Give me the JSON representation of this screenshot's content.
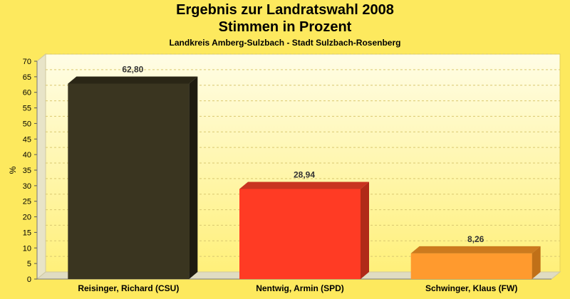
{
  "chart_data": {
    "type": "bar",
    "title": "Ergebnis zur Landratswahl 2008",
    "title2": "Stimmen in Prozent",
    "subtitle": "Landkreis Amberg-Sulzbach - Stadt Sulzbach-Rosenberg",
    "ylabel": "%",
    "xlabel": "",
    "ylim": [
      0,
      70
    ],
    "ytick_step": 5,
    "grid": true,
    "legend": "none",
    "categories": [
      "Reisinger, Richard (CSU)",
      "Nentwig, Armin (SPD)",
      "Schwinger, Klaus (FW)"
    ],
    "values": [
      62.8,
      28.94,
      8.26
    ],
    "value_labels": [
      "62,80",
      "28,94",
      "8,26"
    ],
    "colors": [
      "#3a3520",
      "#ff3b24",
      "#ff9a2e"
    ],
    "top_colors": [
      "#2a2616",
      "#c83420",
      "#cc7a1e"
    ],
    "side_colors": [
      "#1e1b10",
      "#b02a18",
      "#c07018"
    ]
  }
}
